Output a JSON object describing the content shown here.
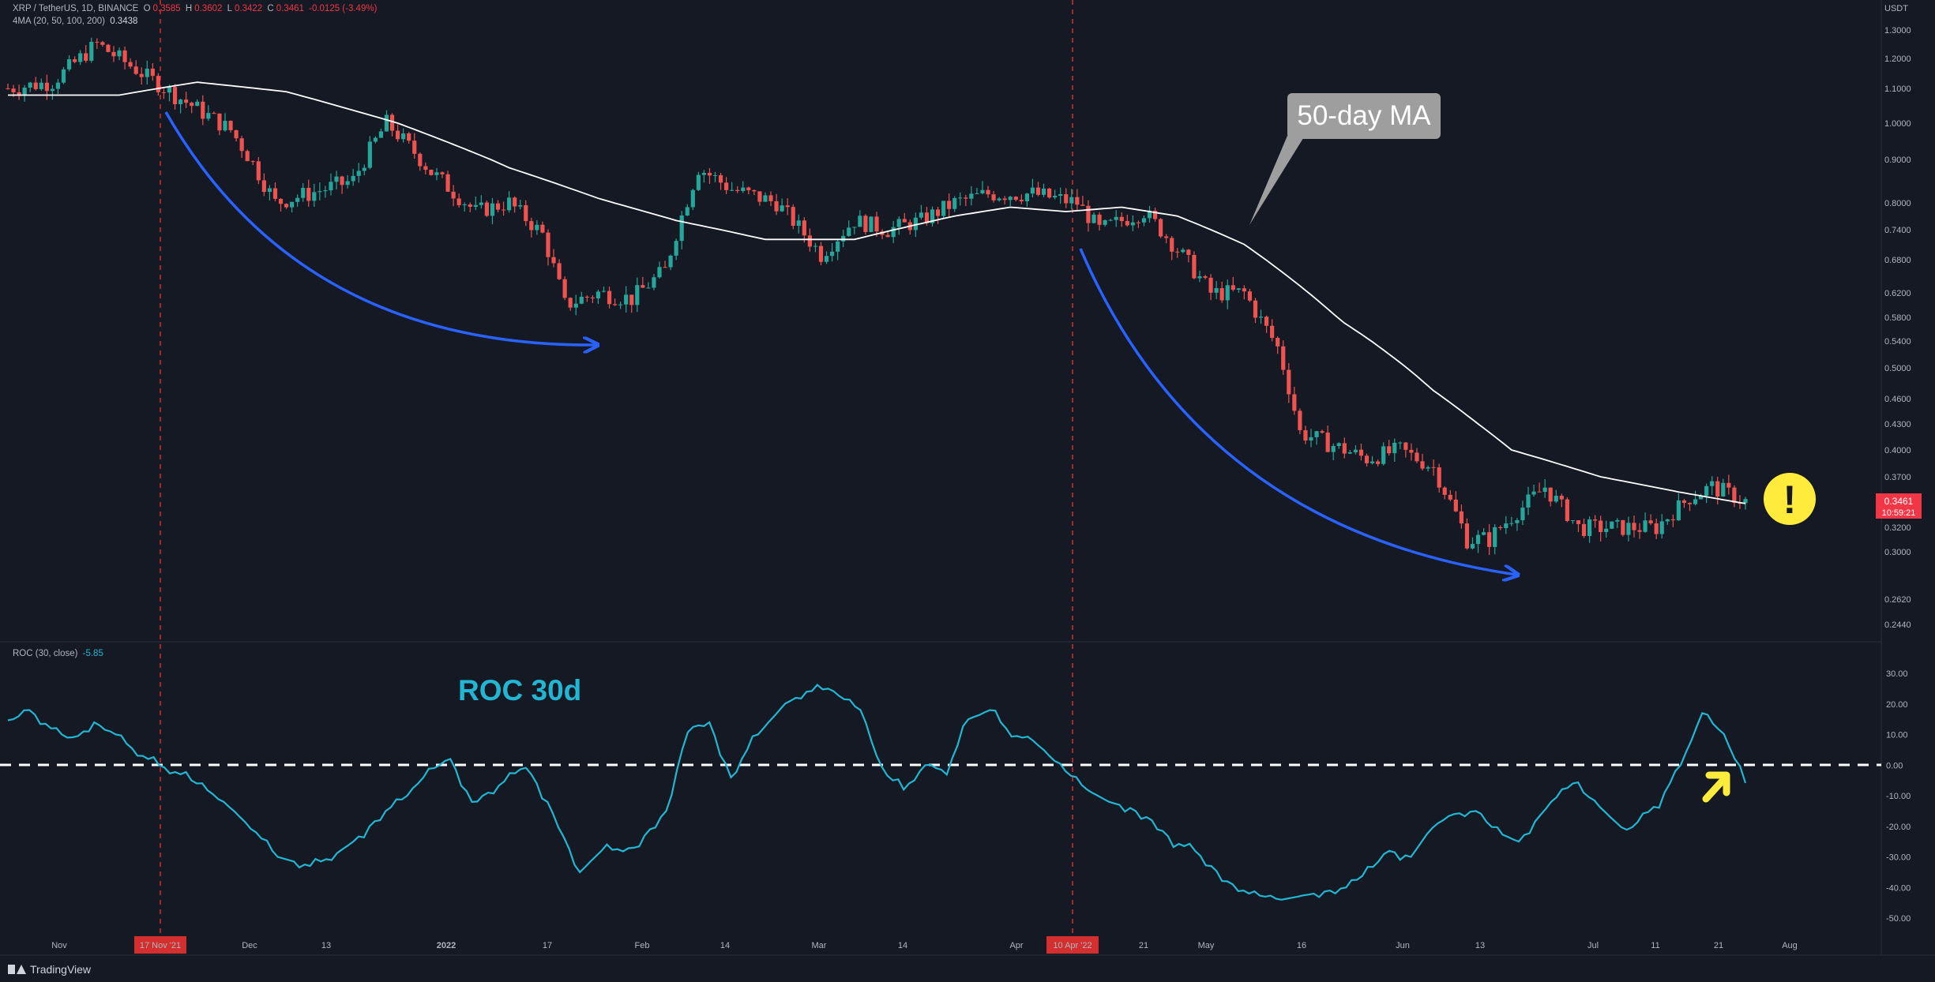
{
  "header": {
    "symbol": "XRP / TetherUS, 1D, BINANCE",
    "o_label": "O",
    "o_value": "0.3585",
    "h_label": "H",
    "h_value": "0.3602",
    "l_label": "L",
    "l_value": "0.3422",
    "c_label": "C",
    "c_value": "0.3461",
    "change": "-0.0125 (-3.49%)",
    "ma_label": "4MA (20, 50, 100, 200)",
    "ma_value": "0.3438",
    "currency": "USDT"
  },
  "roc_header": {
    "label": "ROC (30, close)",
    "value": "-5.85"
  },
  "price_tag": {
    "price": "0.3461",
    "countdown": "10:59:21"
  },
  "annotations": {
    "ma_callout": "50-day MA",
    "roc_title": "ROC 30d",
    "alert_symbol": "!"
  },
  "date_markers": [
    "17 Nov '21",
    "10 Apr '22"
  ],
  "footer": {
    "brand": "TradingView"
  },
  "colors": {
    "up": "#26a69a",
    "down": "#ef5350",
    "ma": "#ffffff",
    "roc": "#22b6d3",
    "arrow": "#2962ff",
    "alert": "#ffeb3b"
  },
  "chart_data": [
    {
      "type": "candlestick",
      "title": "XRP / TetherUS, 1D, BINANCE",
      "scale": "log",
      "y_ticks": [
        "1.3000",
        "1.2000",
        "1.1000",
        "1.0000",
        "0.9000",
        "0.8000",
        "0.7400",
        "0.6800",
        "0.6200",
        "0.5800",
        "0.5400",
        "0.5000",
        "0.4600",
        "0.4300",
        "0.4000",
        "0.3700",
        "0.3461",
        "0.3200",
        "0.3000",
        "0.2620",
        "0.2440"
      ],
      "x_ticks": [
        "Nov",
        "17 Nov '21",
        "Dec",
        "13",
        "2022",
        "17",
        "Feb",
        "14",
        "Mar",
        "14",
        "Apr",
        "10 Apr '22",
        "21",
        "May",
        "16",
        "Jun",
        "13",
        "Jul",
        "11",
        "21",
        "Aug"
      ],
      "close_anchors": [
        [
          0,
          1.1
        ],
        [
          8,
          1.12
        ],
        [
          16,
          1.25
        ],
        [
          24,
          1.15
        ],
        [
          30,
          1.08
        ],
        [
          40,
          0.98
        ],
        [
          48,
          0.8
        ],
        [
          54,
          0.82
        ],
        [
          62,
          0.85
        ],
        [
          68,
          1.0
        ],
        [
          76,
          0.87
        ],
        [
          84,
          0.78
        ],
        [
          90,
          0.8
        ],
        [
          96,
          0.73
        ],
        [
          100,
          0.6
        ],
        [
          106,
          0.62
        ],
        [
          112,
          0.61
        ],
        [
          118,
          0.66
        ],
        [
          124,
          0.88
        ],
        [
          130,
          0.83
        ],
        [
          138,
          0.8
        ],
        [
          146,
          0.69
        ],
        [
          152,
          0.76
        ],
        [
          158,
          0.74
        ],
        [
          164,
          0.76
        ],
        [
          170,
          0.8
        ],
        [
          176,
          0.82
        ],
        [
          184,
          0.82
        ],
        [
          192,
          0.8
        ],
        [
          196,
          0.74
        ],
        [
          204,
          0.78
        ],
        [
          210,
          0.7
        ],
        [
          216,
          0.62
        ],
        [
          222,
          0.62
        ],
        [
          228,
          0.53
        ],
        [
          232,
          0.42
        ],
        [
          236,
          0.41
        ],
        [
          244,
          0.39
        ],
        [
          250,
          0.4
        ],
        [
          256,
          0.38
        ],
        [
          262,
          0.31
        ],
        [
          266,
          0.31
        ],
        [
          270,
          0.33
        ],
        [
          276,
          0.36
        ],
        [
          282,
          0.32
        ],
        [
          290,
          0.32
        ],
        [
          296,
          0.32
        ],
        [
          302,
          0.35
        ],
        [
          306,
          0.36
        ],
        [
          312,
          0.346
        ]
      ],
      "ma50_anchors": [
        [
          0,
          1.08
        ],
        [
          20,
          1.08
        ],
        [
          34,
          1.12
        ],
        [
          50,
          1.09
        ],
        [
          70,
          1.0
        ],
        [
          90,
          0.88
        ],
        [
          106,
          0.81
        ],
        [
          120,
          0.76
        ],
        [
          136,
          0.72
        ],
        [
          152,
          0.72
        ],
        [
          170,
          0.77
        ],
        [
          180,
          0.79
        ],
        [
          190,
          0.78
        ],
        [
          200,
          0.79
        ],
        [
          210,
          0.77
        ],
        [
          222,
          0.71
        ],
        [
          240,
          0.57
        ],
        [
          256,
          0.47
        ],
        [
          270,
          0.4
        ],
        [
          286,
          0.37
        ],
        [
          300,
          0.355
        ],
        [
          312,
          0.3438
        ]
      ]
    },
    {
      "type": "line",
      "title": "ROC (30, close)",
      "y_ticks": [
        30,
        20,
        10,
        0,
        -10,
        -20,
        -30,
        -40,
        -50
      ],
      "ylim": [
        -55,
        35
      ],
      "series": [
        {
          "name": "ROC",
          "points": [
            [
              0,
              14
            ],
            [
              4,
              18
            ],
            [
              8,
              12
            ],
            [
              12,
              8
            ],
            [
              16,
              14
            ],
            [
              20,
              10
            ],
            [
              24,
              4
            ],
            [
              28,
              0
            ],
            [
              32,
              -3
            ],
            [
              36,
              -7
            ],
            [
              40,
              -12
            ],
            [
              46,
              -22
            ],
            [
              50,
              -30
            ],
            [
              56,
              -33
            ],
            [
              60,
              -30
            ],
            [
              64,
              -25
            ],
            [
              70,
              -15
            ],
            [
              74,
              -10
            ],
            [
              78,
              -2
            ],
            [
              82,
              2
            ],
            [
              86,
              -12
            ],
            [
              90,
              -8
            ],
            [
              96,
              0
            ],
            [
              100,
              -12
            ],
            [
              106,
              -35
            ],
            [
              110,
              -28
            ],
            [
              116,
              -27
            ],
            [
              122,
              -15
            ],
            [
              126,
              12
            ],
            [
              130,
              14
            ],
            [
              134,
              -4
            ],
            [
              138,
              8
            ],
            [
              144,
              20
            ],
            [
              148,
              24
            ],
            [
              152,
              25
            ],
            [
              158,
              18
            ],
            [
              162,
              -2
            ],
            [
              166,
              -8
            ],
            [
              170,
              0
            ],
            [
              174,
              -2
            ],
            [
              178,
              15
            ],
            [
              182,
              18
            ],
            [
              186,
              10
            ],
            [
              190,
              8
            ],
            [
              196,
              -2
            ],
            [
              200,
              -8
            ],
            [
              204,
              -12
            ],
            [
              208,
              -14
            ],
            [
              212,
              -18
            ],
            [
              216,
              -25
            ],
            [
              220,
              -28
            ],
            [
              226,
              -38
            ],
            [
              230,
              -42
            ],
            [
              236,
              -44
            ],
            [
              242,
              -42
            ],
            [
              248,
              -40
            ],
            [
              252,
              -35
            ],
            [
              256,
              -28
            ],
            [
              260,
              -30
            ],
            [
              264,
              -20
            ],
            [
              268,
              -16
            ],
            [
              272,
              -15
            ],
            [
              276,
              -22
            ],
            [
              280,
              -25
            ],
            [
              286,
              -12
            ],
            [
              290,
              -6
            ],
            [
              294,
              -12
            ],
            [
              300,
              -22
            ],
            [
              306,
              -12
            ],
            [
              310,
              0
            ],
            [
              314,
              17
            ],
            [
              318,
              10
            ],
            [
              322,
              -5.85
            ]
          ]
        }
      ]
    }
  ]
}
